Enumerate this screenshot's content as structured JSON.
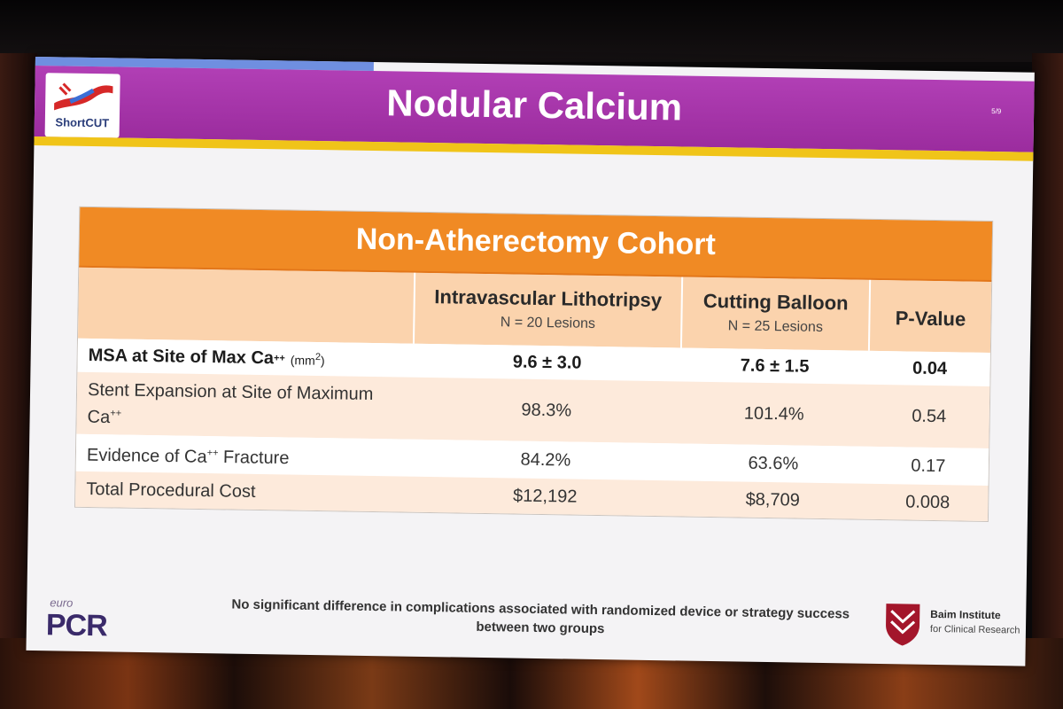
{
  "slide": {
    "logo_text": "ShortCUT",
    "title": "Nodular Calcium",
    "slide_number": "5/9",
    "colors": {
      "header": "#a8339f",
      "accent_line": "#f0c419",
      "table_header": "#f08a24",
      "column_header": "#fbd3ad"
    }
  },
  "table": {
    "cohort_title": "Non-Atherectomy Cohort",
    "columns": [
      {
        "name": "Intravascular Lithotripsy",
        "subtitle": "N = 20 Lesions"
      },
      {
        "name": "Cutting Balloon",
        "subtitle": "N = 25 Lesions"
      },
      {
        "name": "P-Value",
        "subtitle": ""
      }
    ],
    "rows": [
      {
        "label": "MSA at Site of Max Ca",
        "label_sup": "++",
        "unit": "(mm",
        "unit_sup": "2",
        "unit_end": ")",
        "ivl": "9.6 ± 3.0",
        "cb": "7.6 ± 1.5",
        "p": "0.04"
      },
      {
        "label": "Stent Expansion at Site of Maximum Ca",
        "label_sup": "++",
        "ivl": "98.3%",
        "cb": "101.4%",
        "p": "0.54"
      },
      {
        "label": "Evidence of Ca",
        "label_sup": "++",
        "label_end": " Fracture",
        "ivl": "84.2%",
        "cb": "63.6%",
        "p": "0.17"
      },
      {
        "label": "Total Procedural Cost",
        "ivl": "$12,192",
        "cb": "$8,709",
        "p": "0.008"
      }
    ]
  },
  "footer": {
    "note": "No significant difference in complications associated with randomized device or strategy success between two groups",
    "euro": "euro",
    "pcr": "PCR",
    "institute_name": "Baim Institute",
    "institute_sub": "for Clinical Research"
  }
}
